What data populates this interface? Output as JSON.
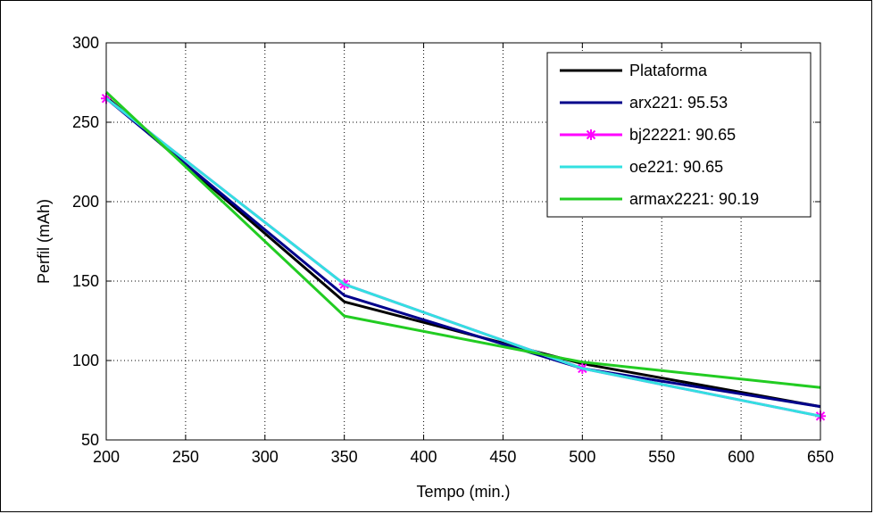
{
  "chart_data": {
    "type": "line",
    "xlabel": "Tempo (min.)",
    "ylabel": "Perfil (mAh)",
    "xlim": [
      200,
      650
    ],
    "ylim": [
      50,
      300
    ],
    "xticks": [
      200,
      250,
      300,
      350,
      400,
      450,
      500,
      550,
      600,
      650
    ],
    "yticks": [
      50,
      100,
      150,
      200,
      250,
      300
    ],
    "grid": true,
    "legend_position": "top-right",
    "x": [
      200,
      350,
      500,
      650
    ],
    "series": [
      {
        "name": "Plataforma",
        "color": "#000000",
        "marker": "none",
        "values": [
          266,
          137,
          98,
          71
        ]
      },
      {
        "name": "arx221: 95.53",
        "color": "#00008b",
        "marker": "none",
        "values": [
          265,
          141,
          95,
          71
        ]
      },
      {
        "name": "bj22221: 90.65",
        "color": "#ff00ff",
        "marker": "star",
        "values": [
          265,
          148,
          95,
          65
        ]
      },
      {
        "name": "oe221: 90.65",
        "color": "#33e0e0",
        "marker": "none",
        "values": [
          265,
          148,
          95,
          65
        ]
      },
      {
        "name": "armax2221: 90.19",
        "color": "#22cc22",
        "marker": "none",
        "values": [
          269,
          128,
          99,
          83
        ]
      }
    ]
  }
}
